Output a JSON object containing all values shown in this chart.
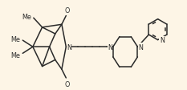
{
  "bg_color": "#fdf5e6",
  "lc": "#2a2a2a",
  "lw": 1.1,
  "fs": 5.8,
  "xlim": [
    -0.3,
    11.8
  ],
  "ylim": [
    3.0,
    9.2
  ],
  "figsize": [
    2.33,
    1.13
  ],
  "dpi": 100
}
